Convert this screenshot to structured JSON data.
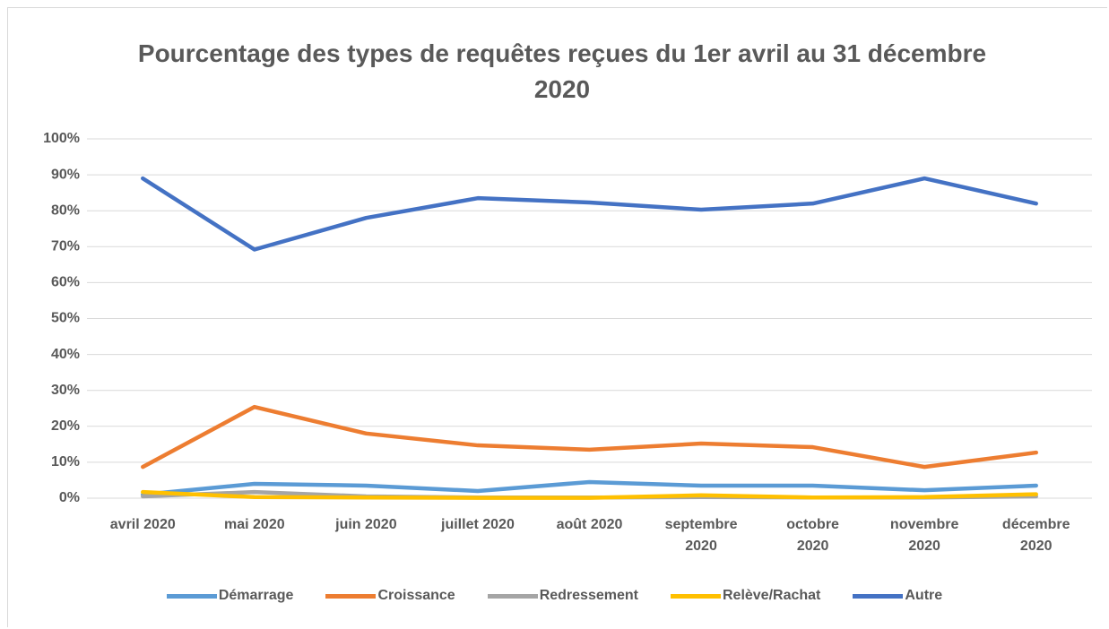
{
  "chart_data": {
    "type": "line",
    "title": "Pourcentage des types de requêtes reçues du 1er avril au 31 décembre 2020",
    "categories": [
      "avril 2020",
      "mai 2020",
      "juin 2020",
      "juillet 2020",
      "août 2020",
      "septembre 2020",
      "octobre 2020",
      "novembre 2020",
      "décembre 2020"
    ],
    "series": [
      {
        "name": "Démarrage",
        "color": "#5b9bd5",
        "values": [
          1,
          4,
          3.5,
          2,
          4.5,
          3.5,
          3.5,
          2.2,
          3.5
        ]
      },
      {
        "name": "Croissance",
        "color": "#ed7d31",
        "values": [
          8.7,
          25.4,
          18,
          14.7,
          13.5,
          15.2,
          14.2,
          8.7,
          12.7
        ]
      },
      {
        "name": "Redressement",
        "color": "#a5a5a5",
        "values": [
          0.5,
          1.7,
          0.5,
          0.2,
          0.2,
          0.3,
          0.2,
          0.2,
          0.5
        ]
      },
      {
        "name": "Relève/Rachat",
        "color": "#ffc000",
        "values": [
          1.7,
          0.3,
          0.2,
          0.1,
          0.1,
          0.8,
          0.2,
          0.3,
          1.1
        ]
      },
      {
        "name": "Autre",
        "color": "#4472c4",
        "values": [
          89,
          69.2,
          78,
          83.5,
          82.3,
          80.3,
          82,
          89,
          82
        ]
      }
    ],
    "ylim": [
      0,
      100
    ],
    "yticks": [
      {
        "value": 0,
        "label": "0%"
      },
      {
        "value": 10,
        "label": "10%"
      },
      {
        "value": 20,
        "label": "20%"
      },
      {
        "value": 30,
        "label": "30%"
      },
      {
        "value": 40,
        "label": "40%"
      },
      {
        "value": 50,
        "label": "50%"
      },
      {
        "value": 60,
        "label": "60%"
      },
      {
        "value": 70,
        "label": "70%"
      },
      {
        "value": 80,
        "label": "80%"
      },
      {
        "value": 90,
        "label": "90%"
      },
      {
        "value": 100,
        "label": "100%"
      }
    ],
    "grid": true,
    "legend": "bottom"
  }
}
